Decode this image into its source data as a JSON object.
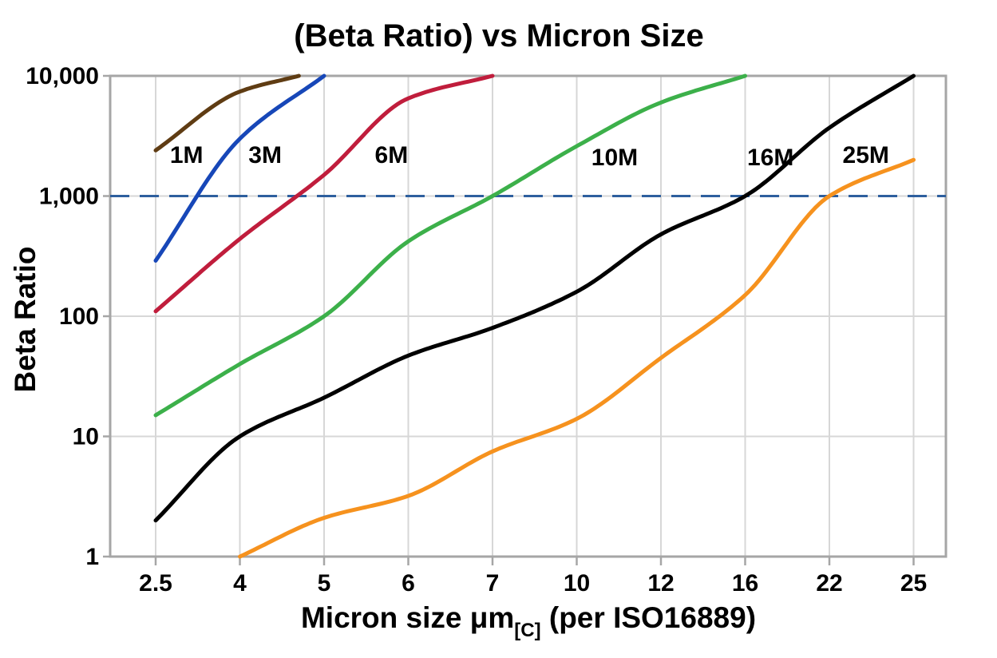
{
  "chart_data": {
    "type": "line",
    "title": "(Beta Ratio) vs Micron Size",
    "ylabel": "Beta Ratio",
    "xlabel": "Micron size μm[C] (per ISO16889)",
    "xlabel_main": "Micron size μm",
    "xlabel_sub": "[C]",
    "xlabel_suffix": " (per ISO16889)",
    "y_scale": "log",
    "ylim": [
      1,
      10000
    ],
    "grid": true,
    "x_ticks": [
      {
        "value": 2.5,
        "label": "2.5"
      },
      {
        "value": 4,
        "label": "4"
      },
      {
        "value": 5,
        "label": "5"
      },
      {
        "value": 6,
        "label": "6"
      },
      {
        "value": 7,
        "label": "7"
      },
      {
        "value": 10,
        "label": "10"
      },
      {
        "value": 12,
        "label": "12"
      },
      {
        "value": 16,
        "label": "16"
      },
      {
        "value": 22,
        "label": "22"
      },
      {
        "value": 25,
        "label": "25"
      }
    ],
    "y_ticks": [
      {
        "value": 1,
        "label": "1"
      },
      {
        "value": 10,
        "label": "10"
      },
      {
        "value": 100,
        "label": "100"
      },
      {
        "value": 1000,
        "label": "1,000"
      },
      {
        "value": 10000,
        "label": "10,000"
      }
    ],
    "y_gridlines": [
      10,
      100,
      1000
    ],
    "reference_line": {
      "value": 1000,
      "style": "dashed",
      "color": "#2e5f9e"
    },
    "series": [
      {
        "name": "1M",
        "color": "#5f3c13",
        "points": [
          [
            2.5,
            2400
          ],
          [
            4,
            7400
          ],
          [
            4.7,
            10000
          ]
        ]
      },
      {
        "name": "3M",
        "color": "#1747b8",
        "points": [
          [
            2.5,
            290
          ],
          [
            4,
            3000
          ],
          [
            5,
            10000
          ]
        ]
      },
      {
        "name": "6M",
        "color": "#c01d3c",
        "points": [
          [
            2.5,
            110
          ],
          [
            4,
            440
          ],
          [
            5,
            1500
          ],
          [
            6,
            6500
          ],
          [
            7,
            10000
          ]
        ]
      },
      {
        "name": "10M",
        "color": "#3cb04a",
        "points": [
          [
            2.5,
            15
          ],
          [
            4,
            40
          ],
          [
            5,
            100
          ],
          [
            6,
            420
          ],
          [
            7,
            1000
          ],
          [
            10,
            2600
          ],
          [
            12,
            6000
          ],
          [
            16,
            10000
          ]
        ]
      },
      {
        "name": "16M",
        "color": "#000000",
        "points": [
          [
            2.5,
            2
          ],
          [
            4,
            10
          ],
          [
            5,
            21
          ],
          [
            6,
            47
          ],
          [
            7,
            80
          ],
          [
            10,
            160
          ],
          [
            12,
            480
          ],
          [
            16,
            1000
          ],
          [
            22,
            3700
          ],
          [
            25,
            10000
          ]
        ]
      },
      {
        "name": "25M",
        "color": "#f6921e",
        "points": [
          [
            4,
            1
          ],
          [
            5,
            2.1
          ],
          [
            6,
            3.2
          ],
          [
            7,
            7.5
          ],
          [
            10,
            14
          ],
          [
            12,
            45
          ],
          [
            16,
            150
          ],
          [
            22,
            1000
          ],
          [
            25,
            2000
          ]
        ]
      }
    ],
    "series_labels": [
      {
        "text": "1M",
        "series": "1M",
        "micron": 3.05,
        "beta": 2200
      },
      {
        "text": "3M",
        "series": "3M",
        "micron": 4.3,
        "beta": 2200
      },
      {
        "text": "6M",
        "series": "6M",
        "micron": 5.8,
        "beta": 2200
      },
      {
        "text": "10M",
        "series": "10M",
        "micron": 10.9,
        "beta": 2100
      },
      {
        "text": "16M",
        "series": "16M",
        "micron": 17.8,
        "beta": 2100
      },
      {
        "text": "25M",
        "series": "25M",
        "micron": 23.3,
        "beta": 2200
      }
    ],
    "legend_position": "inline-labels"
  },
  "colors": {
    "grid": "#d7d7d7",
    "axis": "#a6a6a6",
    "reference": "#2e5f9e",
    "text": "#000000",
    "background": "#ffffff"
  }
}
